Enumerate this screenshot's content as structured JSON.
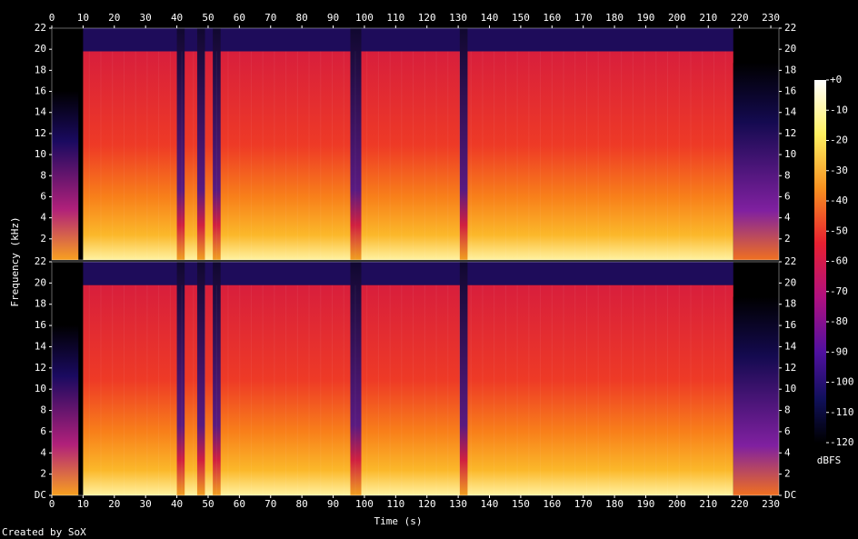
{
  "chart_data": {
    "type": "spectrogram",
    "xlabel": "Time (s)",
    "ylabel": "Frequency (kHz)",
    "xlim": [
      0,
      232.6
    ],
    "xticks": [
      0,
      10,
      20,
      30,
      40,
      50,
      60,
      70,
      80,
      90,
      100,
      110,
      120,
      130,
      140,
      150,
      160,
      170,
      180,
      190,
      200,
      210,
      220,
      230
    ],
    "ylim": [
      0,
      22
    ],
    "yticks": [
      {
        "value": 0,
        "label": "DC"
      },
      2,
      4,
      6,
      8,
      10,
      12,
      14,
      16,
      18,
      20,
      22
    ],
    "colorbar": {
      "label": "dBFS",
      "lim": [
        -120,
        0
      ],
      "ticks": [
        {
          "value": 0,
          "label": "+0"
        },
        -10,
        -20,
        -30,
        -40,
        -50,
        -60,
        -70,
        -80,
        -90,
        -100,
        -110,
        -120
      ]
    },
    "footer": "Created by SoX"
  }
}
